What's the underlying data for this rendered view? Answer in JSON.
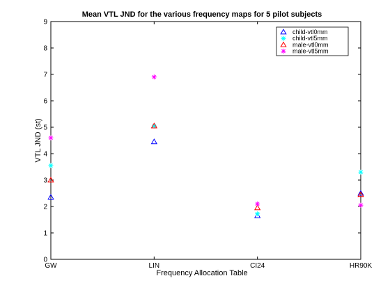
{
  "chart_data": {
    "type": "scatter",
    "title": "Mean VTL JND for the various frequency maps for 5 pilot subjects",
    "xlabel": "Frequency Allocation Table",
    "ylabel": "VTL JND (st)",
    "categories": [
      "GW",
      "LIN",
      "CI24",
      "HR90K"
    ],
    "ylim": [
      0,
      9
    ],
    "yticks": [
      0,
      1,
      2,
      3,
      4,
      5,
      6,
      7,
      8,
      9
    ],
    "grid": false,
    "legend_position": "top-right",
    "series": [
      {
        "name": "child-vtl0mm",
        "marker": "triangle",
        "color": "#0000ff",
        "values": [
          2.35,
          4.45,
          1.65,
          2.5
        ]
      },
      {
        "name": "child-vtl5mm",
        "marker": "star",
        "color": "#00ffff",
        "values": [
          3.55,
          5.05,
          1.72,
          3.3
        ]
      },
      {
        "name": "male-vtl0mm",
        "marker": "triangle",
        "color": "#ff0000",
        "values": [
          3.0,
          5.05,
          1.95,
          2.45
        ]
      },
      {
        "name": "male-vtl5mm",
        "marker": "star",
        "color": "#ff00ff",
        "values": [
          4.6,
          6.9,
          2.1,
          2.05
        ]
      }
    ]
  }
}
